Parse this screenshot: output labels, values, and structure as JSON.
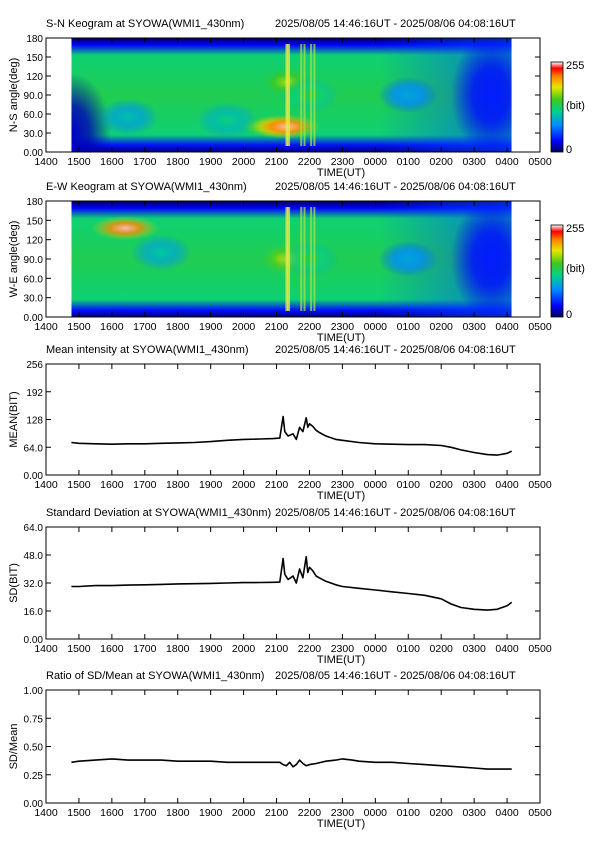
{
  "time_range": "2025/08/05 14:46:16UT - 2025/08/06 04:08:16UT",
  "colorbar": {
    "max_label": "255",
    "unit_label": "(bit)",
    "min_label": "0"
  },
  "chart_data": [
    {
      "type": "heatmap",
      "title": "S-N Keogram at SYOWA(WMI1_430nm)",
      "xlabel": "TIME(UT)",
      "ylabel": "N-S angle(deg)",
      "x_ticks": [
        "1400",
        "1500",
        "1600",
        "1700",
        "1800",
        "1900",
        "2000",
        "2100",
        "2200",
        "2300",
        "0000",
        "0100",
        "0200",
        "0300",
        "0400",
        "0500"
      ],
      "y_ticks": [
        "0.00",
        "30.0",
        "60.0",
        "90.0",
        "120",
        "150",
        "180"
      ],
      "ylim": [
        0,
        180
      ],
      "colorbar_range": [
        0,
        255
      ],
      "features": [
        {
          "time_h": 14.77,
          "angle_deg": 30,
          "level": 20
        },
        {
          "time_h": 16.5,
          "angle_deg": 55,
          "level": 105
        },
        {
          "time_h": 19.5,
          "angle_deg": 50,
          "level": 120
        },
        {
          "time_h": 21.0,
          "angle_deg": 40,
          "level": 210
        },
        {
          "time_h": 21.3,
          "angle_deg": 40,
          "level": 250
        },
        {
          "time_h": 21.3,
          "angle_deg": 110,
          "level": 170
        },
        {
          "time_h": 22.0,
          "angle_deg": 90,
          "level": 140
        },
        {
          "time_h": 1.0,
          "angle_deg": 90,
          "level": 90
        },
        {
          "time_h": 3.5,
          "angle_deg": 90,
          "level": 40
        }
      ]
    },
    {
      "type": "heatmap",
      "title": "E-W Keogram at SYOWA(WMI1_430nm)",
      "xlabel": "TIME(UT)",
      "ylabel": "W-E angle(deg)",
      "x_ticks": [
        "1400",
        "1500",
        "1600",
        "1700",
        "1800",
        "1900",
        "2000",
        "2100",
        "2200",
        "2300",
        "0000",
        "0100",
        "0200",
        "0300",
        "0400",
        "0500"
      ],
      "y_ticks": [
        "0.00",
        "30.0",
        "60.0",
        "90.0",
        "120",
        "150",
        "180"
      ],
      "ylim": [
        0,
        180
      ],
      "colorbar_range": [
        0,
        255
      ],
      "features": [
        {
          "time_h": 16.4,
          "angle_deg": 138,
          "level": 250
        },
        {
          "time_h": 17.5,
          "angle_deg": 100,
          "level": 110
        },
        {
          "time_h": 21.3,
          "angle_deg": 90,
          "level": 180
        },
        {
          "time_h": 22.0,
          "angle_deg": 90,
          "level": 140
        },
        {
          "time_h": 1.0,
          "angle_deg": 90,
          "level": 90
        },
        {
          "time_h": 3.5,
          "angle_deg": 90,
          "level": 40
        }
      ]
    },
    {
      "type": "line",
      "title": "Mean intensity at SYOWA(WMI1_430nm)",
      "xlabel": "TIME(UT)",
      "ylabel": "MEAN(BIT)",
      "x_ticks": [
        "1400",
        "1500",
        "1600",
        "1700",
        "1800",
        "1900",
        "2000",
        "2100",
        "2200",
        "2300",
        "0000",
        "0100",
        "0200",
        "0300",
        "0400",
        "0500"
      ],
      "y_ticks": [
        "0.00",
        "64.0",
        "128",
        "192",
        "256"
      ],
      "ylim": [
        0,
        256
      ],
      "series": [
        {
          "x_hours": [
            14.77,
            15.0,
            15.5,
            16.0,
            16.5,
            17.0,
            17.5,
            18.0,
            18.5,
            19.0,
            19.5,
            20.0,
            20.5,
            20.9,
            21.1,
            21.2,
            21.25,
            21.35,
            21.5,
            21.6,
            21.7,
            21.8,
            21.9,
            21.95,
            22.0,
            22.1,
            22.2,
            22.3,
            22.5,
            22.8,
            23.0,
            23.5,
            24.0,
            24.5,
            25.0,
            25.5,
            26.0,
            26.3,
            26.6,
            27.0,
            27.4,
            27.7,
            28.0,
            28.14
          ],
          "y": [
            75,
            73,
            72,
            71,
            72,
            72,
            73,
            74,
            75,
            77,
            80,
            82,
            83,
            84,
            85,
            135,
            100,
            90,
            95,
            82,
            110,
            100,
            132,
            110,
            118,
            112,
            103,
            98,
            90,
            82,
            80,
            75,
            72,
            71,
            70,
            70,
            68,
            64,
            58,
            52,
            47,
            46,
            50,
            55
          ]
        }
      ]
    },
    {
      "type": "line",
      "title": "Standard Deviation at SYOWA(WMI1_430nm)",
      "xlabel": "TIME(UT)",
      "ylabel": "SD(BIT)",
      "x_ticks": [
        "1400",
        "1500",
        "1600",
        "1700",
        "1800",
        "1900",
        "2000",
        "2100",
        "2200",
        "2300",
        "0000",
        "0100",
        "0200",
        "0300",
        "0400",
        "0500"
      ],
      "y_ticks": [
        "0.00",
        "16.0",
        "32.0",
        "48.0",
        "64.0"
      ],
      "ylim": [
        0,
        64
      ],
      "series": [
        {
          "x_hours": [
            14.77,
            15.0,
            15.5,
            16.0,
            16.5,
            17.0,
            17.5,
            18.0,
            18.5,
            19.0,
            19.5,
            20.0,
            20.5,
            20.9,
            21.1,
            21.2,
            21.25,
            21.35,
            21.5,
            21.6,
            21.7,
            21.8,
            21.9,
            21.95,
            22.0,
            22.1,
            22.2,
            22.3,
            22.5,
            22.8,
            23.0,
            23.5,
            24.0,
            24.5,
            25.0,
            25.5,
            26.0,
            26.3,
            26.6,
            27.0,
            27.4,
            27.7,
            28.0,
            28.14
          ],
          "y": [
            30,
            30,
            30.5,
            30.5,
            30.8,
            31,
            31.2,
            31.5,
            31.6,
            31.8,
            32,
            32.2,
            32.3,
            32.4,
            32.5,
            46,
            37,
            34,
            36,
            32,
            40,
            35,
            47,
            38,
            41,
            39,
            36,
            35,
            33,
            31,
            30,
            29,
            28,
            27,
            26,
            25,
            23,
            20,
            18,
            17,
            16.5,
            17,
            19,
            21
          ]
        }
      ]
    },
    {
      "type": "line",
      "title": "Ratio of SD/Mean at SYOWA(WMI1_430nm)",
      "xlabel": "TIME(UT)",
      "ylabel": "SD/Mean",
      "x_ticks": [
        "1400",
        "1500",
        "1600",
        "1700",
        "1800",
        "1900",
        "2000",
        "2100",
        "2200",
        "2300",
        "0000",
        "0100",
        "0200",
        "0300",
        "0400",
        "0500"
      ],
      "y_ticks": [
        "0.00",
        "0.25",
        "0.50",
        "0.75",
        "1.00"
      ],
      "ylim": [
        0,
        1
      ],
      "series": [
        {
          "x_hours": [
            14.77,
            15.0,
            15.5,
            16.0,
            16.5,
            17.0,
            17.5,
            18.0,
            18.5,
            19.0,
            19.5,
            20.0,
            20.5,
            20.9,
            21.1,
            21.2,
            21.3,
            21.4,
            21.5,
            21.6,
            21.7,
            21.8,
            21.9,
            22.0,
            22.2,
            22.5,
            22.8,
            23.0,
            23.3,
            23.5,
            24.0,
            24.5,
            25.0,
            25.5,
            26.0,
            26.5,
            27.0,
            27.4,
            27.7,
            28.0,
            28.14
          ],
          "y": [
            0.36,
            0.37,
            0.38,
            0.39,
            0.38,
            0.38,
            0.38,
            0.37,
            0.37,
            0.37,
            0.36,
            0.36,
            0.36,
            0.36,
            0.36,
            0.34,
            0.33,
            0.36,
            0.32,
            0.34,
            0.38,
            0.35,
            0.33,
            0.34,
            0.35,
            0.37,
            0.38,
            0.39,
            0.38,
            0.37,
            0.36,
            0.36,
            0.35,
            0.34,
            0.33,
            0.32,
            0.31,
            0.3,
            0.3,
            0.3,
            0.3
          ]
        }
      ]
    }
  ]
}
